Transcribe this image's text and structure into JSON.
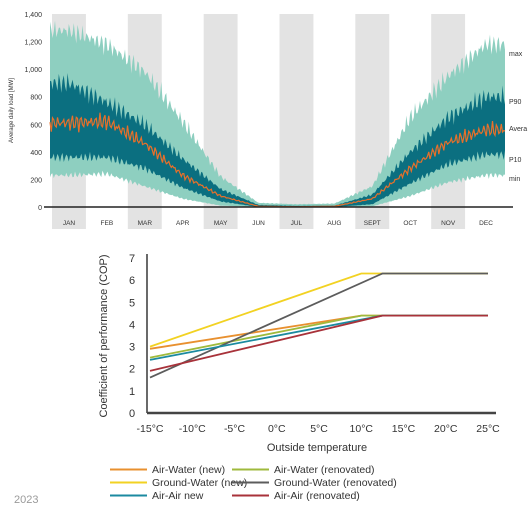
{
  "footer": {
    "text": "2023"
  },
  "chart_data": [
    {
      "type": "area",
      "ylabel": "Average daily load [MW]",
      "ylim": [
        0,
        1400
      ],
      "yticks": [
        "0",
        "200",
        "400",
        "600",
        "800",
        "1,000",
        "1,200",
        "1,400"
      ],
      "categories": [
        "JAN",
        "FEB",
        "MAR",
        "APR",
        "MAY",
        "JUN",
        "JUL",
        "AUG",
        "SEPT",
        "OCT",
        "NOV",
        "DEC"
      ],
      "shaded_months": [
        "JAN",
        "MAR",
        "MAY",
        "JUL",
        "SEPT",
        "NOV"
      ],
      "grid": false,
      "colors": {
        "band_outer": "#8ecfc0",
        "band_inner": "#0b6f80",
        "average": "#e8702a",
        "shade": "#e3e3e3"
      },
      "series": [
        {
          "name": "max",
          "values": [
            1280,
            1180,
            980,
            620,
            220,
            30,
            20,
            25,
            150,
            650,
            950,
            1180
          ]
        },
        {
          "name": "P90",
          "values": [
            900,
            760,
            600,
            350,
            130,
            15,
            8,
            10,
            90,
            400,
            650,
            800
          ]
        },
        {
          "name": "Avera",
          "values": [
            610,
            620,
            460,
            230,
            80,
            5,
            2,
            5,
            60,
            280,
            470,
            560
          ]
        },
        {
          "name": "P10",
          "values": [
            360,
            360,
            280,
            140,
            40,
            0,
            0,
            0,
            20,
            170,
            310,
            380
          ]
        },
        {
          "name": "min",
          "values": [
            230,
            240,
            150,
            60,
            10,
            0,
            0,
            0,
            5,
            80,
            180,
            230
          ]
        }
      ]
    },
    {
      "type": "line",
      "xlabel": "Outside temperature",
      "ylabel": "Coefficient of performance (COP)",
      "x": [
        -15,
        10,
        12.5,
        25
      ],
      "xticks": [
        "-15°C",
        "-10°C",
        "-5°C",
        "0°C",
        "5°C",
        "10°C",
        "15°C",
        "20°C",
        "25°C"
      ],
      "xlim": [
        -15,
        25
      ],
      "yticks": [
        "0",
        "1",
        "2",
        "3",
        "4",
        "5",
        "6",
        "7"
      ],
      "ylim": [
        0,
        7
      ],
      "legend": "bottom",
      "series": [
        {
          "name": "Air-Water (new)",
          "color": "#e8902f",
          "x": [
            -15,
            10,
            25
          ],
          "y": [
            2.9,
            4.4,
            4.4
          ]
        },
        {
          "name": "Air-Water (renovated)",
          "color": "#9fba3c",
          "x": [
            -15,
            10,
            25
          ],
          "y": [
            2.5,
            4.4,
            4.4
          ]
        },
        {
          "name": "Ground-Water (new)",
          "color": "#f2d222",
          "x": [
            -15,
            10,
            12.5,
            25
          ],
          "y": [
            3.0,
            6.3,
            6.3,
            6.3
          ]
        },
        {
          "name": "Ground-Water (renovated)",
          "color": "#5c5c5c",
          "x": [
            -15,
            12.5,
            25
          ],
          "y": [
            1.6,
            6.3,
            6.3
          ]
        },
        {
          "name": "Air-Air new",
          "color": "#1b8aa0",
          "x": [
            -15,
            12.5,
            25
          ],
          "y": [
            2.4,
            4.4,
            4.4
          ]
        },
        {
          "name": "Air-Air (renovated)",
          "color": "#a8323a",
          "x": [
            -15,
            12.5,
            25
          ],
          "y": [
            1.9,
            4.4,
            4.4
          ]
        }
      ]
    }
  ]
}
